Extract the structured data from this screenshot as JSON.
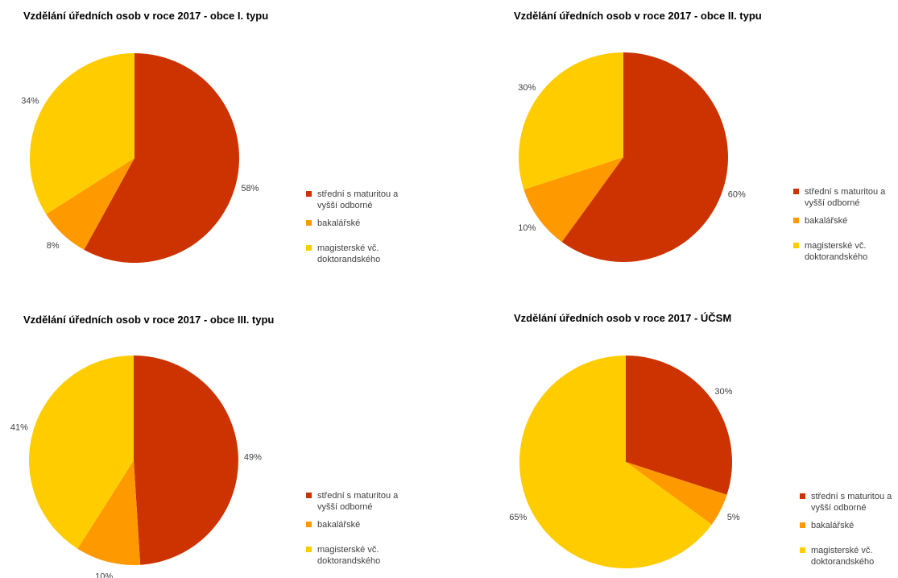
{
  "colors": {
    "stredni": "#cc3300",
    "bakalarske": "#ff9900",
    "magisterske": "#ffcc00"
  },
  "chart_data": [
    {
      "type": "pie",
      "title": "Vzdělání úředních osob v roce 2017 - obce I. typu",
      "labels": [
        "střední s maturitou a\nvyšší odborné",
        "bakalářské",
        "magisterské vč.\ndoktorandského"
      ],
      "values": [
        58,
        8,
        34
      ],
      "value_labels": [
        "58%",
        "8%",
        "34%"
      ],
      "legend_position": "right"
    },
    {
      "type": "pie",
      "title": "Vzdělání úředních osob v roce 2017 - obce II. typu",
      "labels": [
        "střední s maturitou a\nvyšší odborné",
        "bakalářské",
        "magisterské vč.\ndoktorandského"
      ],
      "values": [
        60,
        10,
        30
      ],
      "value_labels": [
        "60%",
        "10%",
        "30%"
      ],
      "legend_position": "right"
    },
    {
      "type": "pie",
      "title": "Vzdělání úředních osob v roce 2017 - obce III. typu",
      "labels": [
        "střední s maturitou a\nvyšší odborné",
        "bakalářské",
        "magisterské vč.\ndoktorandského"
      ],
      "values": [
        49,
        10,
        41
      ],
      "value_labels": [
        "49%",
        "10%",
        "41%"
      ],
      "legend_position": "right"
    },
    {
      "type": "pie",
      "title": "Vzdělání úředních osob v roce 2017 - ÚČSM",
      "labels": [
        "střední s maturitou a\nvyšší odborné",
        "bakalářské",
        "magisterské vč.\ndoktorandského"
      ],
      "values": [
        30,
        5,
        65
      ],
      "value_labels": [
        "30%",
        "5%",
        "65%"
      ],
      "legend_position": "right"
    }
  ]
}
